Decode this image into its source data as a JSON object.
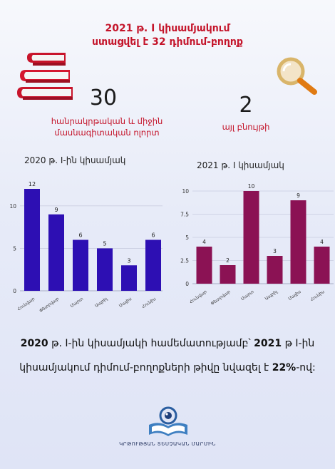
{
  "header": {
    "line1": "2021 թ. I կիսամյակում",
    "line2": "ստացվել է 32 դիմում-բողոք"
  },
  "stats": [
    {
      "value": "30",
      "caption_line1": "հանրակրթական և միջին",
      "caption_line2": "մասնագիտական ոլորտ"
    },
    {
      "value": "2",
      "caption_line1": "այլ բնույթի"
    }
  ],
  "icons": {
    "books": "books-stack-icon",
    "magnifier": "magnifying-glass-icon"
  },
  "colors": {
    "title_red": "#c4142a",
    "series_2020": "#2d0fb3",
    "series_2021": "#8b1254"
  },
  "chart_data": [
    {
      "type": "bar",
      "title": "2020 թ.  I-ին կիսամյակ",
      "categories": [
        "Հունվար",
        "Փետրվար",
        "Մարտ",
        "Ապրիլ",
        "Մայիս",
        "Հունիս"
      ],
      "values": [
        12,
        9,
        6,
        5,
        3,
        6
      ],
      "ylim": [
        0,
        12
      ],
      "yticks": [
        "0",
        "5",
        "10"
      ],
      "grid": true,
      "color": "#2d0fb3"
    },
    {
      "type": "bar",
      "title": "2021 թ. I կիսամյակ",
      "categories": [
        "Հունվար",
        "Փետրվար",
        "Մարտ",
        "Ապրիլ",
        "Մայիս",
        "Հունիս"
      ],
      "values": [
        4,
        2,
        10,
        3,
        9,
        4
      ],
      "ylim": [
        0,
        10
      ],
      "yticks": [
        "0",
        "2.5",
        "5",
        "7.5",
        "10"
      ],
      "grid": true,
      "color": "#8b1254"
    }
  ],
  "summary": {
    "year1": "2020",
    "part1": " թ. I-ին կիսամյակի համեմատությամբ՝ ",
    "year2": "2021",
    "part2": " թ I-ին",
    "part3": "կիսամյակում դիմում-բողոքների թիվը նվազել է ",
    "percent": "22%",
    "part4": "-ով:"
  },
  "footer": {
    "org": "ԿՐԹՈՒԹՅԱՆ ՏԵՍՉԱԿԱՆ ՄԱՐՄԻՆ",
    "logo_icon": "open-book-eye-logo-icon"
  }
}
